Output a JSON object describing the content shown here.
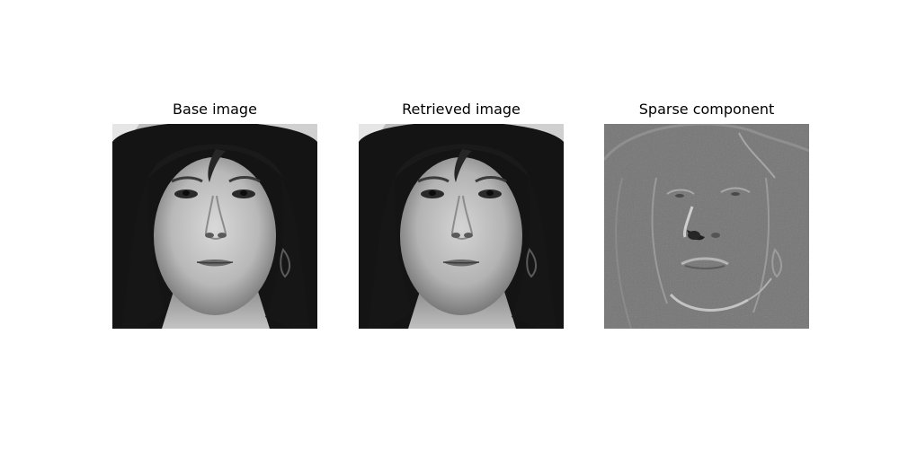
{
  "figure": {
    "panels": [
      {
        "title": "Base image",
        "kind": "grayscale-face-photo"
      },
      {
        "title": "Retrieved image",
        "kind": "grayscale-face-photo"
      },
      {
        "title": "Sparse component",
        "kind": "sparse-residual-map"
      }
    ]
  }
}
